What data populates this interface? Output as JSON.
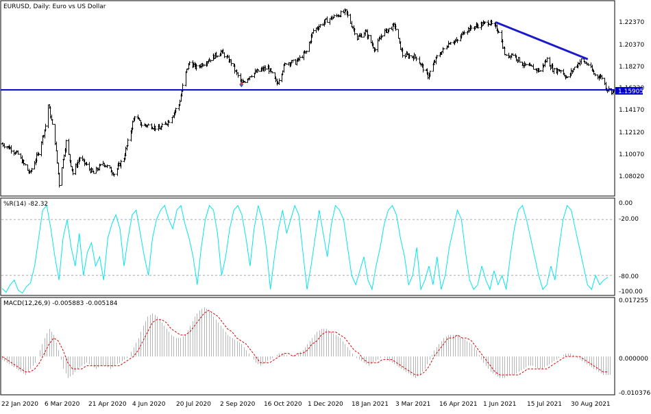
{
  "window": {
    "title": "EURUSD, Daily:  Euro vs US Dollar"
  },
  "colors": {
    "price_bars": "#000000",
    "horizontal_line": "#0000cc",
    "trendline": "#1a1acc",
    "williams_r": "#00e5ee",
    "macd_histogram": "#b4b4b4",
    "macd_signal": "#dd0000",
    "level_grid": "#aaaaaa",
    "current_price_label_bg": "#0000cc",
    "current_price_label_text": "#ffffff"
  },
  "chart_data": [
    {
      "type": "ohlc",
      "title": "EURUSD, Daily:  Euro vs US Dollar",
      "ylim": [
        1.06,
        1.242
      ],
      "y_ticks": [
        "1.22370",
        "1.20370",
        "1.18270",
        "1.16220",
        "1.14170",
        "1.12120",
        "1.10070",
        "1.08020"
      ],
      "horizontal_line": {
        "value": 1.159,
        "label": "1.15905"
      },
      "trendline": {
        "from": {
          "x": "8 Jun 2021",
          "y": 1.223
        },
        "to": {
          "x": "10 Sep 2021",
          "y": 1.188
        }
      },
      "marker": {
        "x": "22 Sep 2020",
        "y": 1.164
      },
      "anchors": [
        [
          "22 Jan 2020",
          1.108
        ],
        [
          "30 Jan 2020",
          1.104
        ],
        [
          "7 Feb 2020",
          1.098
        ],
        [
          "19 Feb 2020",
          1.08
        ],
        [
          "28 Feb 2020",
          1.1
        ],
        [
          "6 Mar 2020",
          1.125
        ],
        [
          "9 Mar 2020",
          1.145
        ],
        [
          "16 Mar 2020",
          1.11
        ],
        [
          "20 Mar 2020",
          1.07
        ],
        [
          "27 Mar 2020",
          1.11
        ],
        [
          "3 Apr 2020",
          1.08
        ],
        [
          "10 Apr 2020",
          1.095
        ],
        [
          "24 Apr 2020",
          1.08
        ],
        [
          "4 May 2020",
          1.09
        ],
        [
          "15 May 2020",
          1.08
        ],
        [
          "25 May 2020",
          1.095
        ],
        [
          "5 Jun 2020",
          1.135
        ],
        [
          "12 Jun 2020",
          1.126
        ],
        [
          "22 Jun 2020",
          1.125
        ],
        [
          "30 Jun 2020",
          1.122
        ],
        [
          "10 Jul 2020",
          1.13
        ],
        [
          "20 Jul 2020",
          1.145
        ],
        [
          "27 Jul 2020",
          1.175
        ],
        [
          "31 Jul 2020",
          1.185
        ],
        [
          "7 Aug 2020",
          1.18
        ],
        [
          "17 Aug 2020",
          1.186
        ],
        [
          "1 Sep 2020",
          1.195
        ],
        [
          "11 Sep 2020",
          1.185
        ],
        [
          "22 Sep 2020",
          1.165
        ],
        [
          "1 Oct 2020",
          1.173
        ],
        [
          "12 Oct 2020",
          1.178
        ],
        [
          "19 Oct 2020",
          1.18
        ],
        [
          "28 Oct 2020",
          1.165
        ],
        [
          "6 Nov 2020",
          1.185
        ],
        [
          "16 Nov 2020",
          1.185
        ],
        [
          "27 Nov 2020",
          1.195
        ],
        [
          "4 Dec 2020",
          1.215
        ],
        [
          "18 Dec 2020",
          1.225
        ],
        [
          "6 Jan 2021",
          1.233
        ],
        [
          "18 Jan 2021",
          1.208
        ],
        [
          "26 Jan 2021",
          1.214
        ],
        [
          "5 Feb 2021",
          1.197
        ],
        [
          "12 Feb 2021",
          1.212
        ],
        [
          "25 Feb 2021",
          1.22
        ],
        [
          "5 Mar 2021",
          1.192
        ],
        [
          "19 Mar 2021",
          1.19
        ],
        [
          "31 Mar 2021",
          1.172
        ],
        [
          "9 Apr 2021",
          1.19
        ],
        [
          "23 Apr 2021",
          1.205
        ],
        [
          "30 Apr 2021",
          1.205
        ],
        [
          "7 May 2021",
          1.215
        ],
        [
          "21 May 2021",
          1.22
        ],
        [
          "1 Jun 2021",
          1.223
        ],
        [
          "11 Jun 2021",
          1.215
        ],
        [
          "18 Jun 2021",
          1.19
        ],
        [
          "25 Jun 2021",
          1.193
        ],
        [
          "7 Jul 2021",
          1.182
        ],
        [
          "15 Jul 2021",
          1.18
        ],
        [
          "23 Jul 2021",
          1.177
        ],
        [
          "30 Jul 2021",
          1.188
        ],
        [
          "6 Aug 2021",
          1.177
        ],
        [
          "13 Aug 2021",
          1.178
        ],
        [
          "20 Aug 2021",
          1.17
        ],
        [
          "27 Aug 2021",
          1.18
        ],
        [
          "3 Sep 2021",
          1.187
        ],
        [
          "10 Sep 2021",
          1.183
        ],
        [
          "17 Sep 2021",
          1.173
        ],
        [
          "24 Sep 2021",
          1.171
        ],
        [
          "29 Sep 2021",
          1.16
        ],
        [
          "6 Oct 2021",
          1.157
        ]
      ]
    },
    {
      "type": "line",
      "title": "%R(14) -82.32",
      "ylim": [
        -100,
        0
      ],
      "y_ticks": [
        "0.00",
        "-20.00",
        "-80.00",
        "-100.00"
      ],
      "levels": [
        -20,
        -80
      ],
      "series": [
        {
          "values": [
            -94,
            -98,
            -90,
            -85,
            -96,
            -99,
            -92,
            -88,
            -70,
            -40,
            -10,
            -5,
            -30,
            -60,
            -85,
            -40,
            -20,
            -50,
            -70,
            -35,
            -80,
            -55,
            -45,
            -70,
            -60,
            -85,
            -40,
            -25,
            -15,
            -30,
            -70,
            -40,
            -15,
            -10,
            -35,
            -60,
            -80,
            -40,
            -20,
            -10,
            -5,
            -20,
            -30,
            -10,
            -5,
            -25,
            -40,
            -60,
            -90,
            -50,
            -20,
            -5,
            -10,
            -35,
            -80,
            -60,
            -30,
            -10,
            -5,
            -15,
            -40,
            -70,
            -30,
            -5,
            -20,
            -50,
            -95,
            -60,
            -30,
            -10,
            -35,
            -20,
            -5,
            -15,
            -55,
            -95,
            -70,
            -40,
            -10,
            -35,
            -60,
            -25,
            -5,
            -10,
            -20,
            -50,
            -80,
            -90,
            -75,
            -60,
            -85,
            -95,
            -70,
            -50,
            -25,
            -10,
            -5,
            -15,
            -40,
            -60,
            -90,
            -80,
            -50,
            -95,
            -85,
            -70,
            -90,
            -60,
            -95,
            -80,
            -50,
            -30,
            -10,
            -20,
            -55,
            -85,
            -95,
            -90,
            -70,
            -85,
            -95,
            -75,
            -90,
            -80,
            -95,
            -60,
            -30,
            -10,
            -5,
            -20,
            -40,
            -60,
            -80,
            -95,
            -90,
            -70,
            -85,
            -50,
            -20,
            -5,
            -10,
            -30,
            -50,
            -70,
            -90,
            -95,
            -80,
            -90,
            -85,
            -82
          ]
        }
      ]
    },
    {
      "type": "bar+line",
      "title": "MACD(12,26,9) -0.005883 -0.005184",
      "ylim": [
        -0.012,
        0.0185
      ],
      "y_ticks": [
        "0.017255",
        "0.000000",
        "-0.010376"
      ],
      "series": [
        {
          "name": "MACD",
          "values": [
            -0.001,
            -0.002,
            -0.003,
            -0.004,
            -0.005,
            -0.006,
            -0.004,
            -0.002,
            0.002,
            0.006,
            0.009,
            0.007,
            0.002,
            -0.004,
            -0.007,
            -0.006,
            -0.004,
            -0.003,
            -0.002,
            -0.003,
            -0.004,
            -0.003,
            -0.003,
            -0.004,
            -0.003,
            -0.002,
            -0.001,
            0.0,
            0.003,
            0.006,
            0.01,
            0.013,
            0.014,
            0.013,
            0.011,
            0.009,
            0.007,
            0.006,
            0.006,
            0.007,
            0.01,
            0.013,
            0.015,
            0.016,
            0.015,
            0.013,
            0.011,
            0.009,
            0.007,
            0.006,
            0.005,
            0.004,
            0.002,
            0.0,
            -0.002,
            -0.003,
            -0.002,
            -0.001,
            0.0,
            0.001,
            0.001,
            0.0,
            0.0,
            0.001,
            0.002,
            0.004,
            0.006,
            0.008,
            0.009,
            0.009,
            0.008,
            0.007,
            0.006,
            0.004,
            0.002,
            0.0,
            -0.001,
            -0.002,
            -0.003,
            -0.002,
            -0.001,
            0.0,
            -0.001,
            -0.002,
            -0.003,
            -0.004,
            -0.005,
            -0.006,
            -0.007,
            -0.006,
            -0.004,
            -0.001,
            0.002,
            0.004,
            0.006,
            0.007,
            0.007,
            0.007,
            0.006,
            0.005,
            0.004,
            0.002,
            -0.001,
            -0.003,
            -0.005,
            -0.006,
            -0.007,
            -0.007,
            -0.006,
            -0.006,
            -0.005,
            -0.004,
            -0.003,
            -0.003,
            -0.004,
            -0.004,
            -0.003,
            -0.002,
            -0.001,
            0.0,
            0.001,
            0.001,
            0.0,
            -0.001,
            -0.002,
            -0.003,
            -0.004,
            -0.005,
            -0.006,
            -0.006
          ]
        },
        {
          "name": "Signal",
          "values": [
            0.0,
            -0.001,
            -0.002,
            -0.003,
            -0.004,
            -0.005,
            -0.005,
            -0.004,
            -0.002,
            0.001,
            0.004,
            0.006,
            0.005,
            0.002,
            -0.002,
            -0.004,
            -0.004,
            -0.004,
            -0.003,
            -0.003,
            -0.003,
            -0.003,
            -0.003,
            -0.003,
            -0.003,
            -0.003,
            -0.002,
            -0.001,
            0.0,
            0.002,
            0.005,
            0.008,
            0.011,
            0.012,
            0.012,
            0.011,
            0.009,
            0.008,
            0.007,
            0.007,
            0.008,
            0.01,
            0.012,
            0.014,
            0.015,
            0.014,
            0.013,
            0.011,
            0.009,
            0.008,
            0.006,
            0.005,
            0.004,
            0.002,
            0.0,
            -0.002,
            -0.002,
            -0.002,
            -0.001,
            0.0,
            0.001,
            0.001,
            0.0,
            0.001,
            0.001,
            0.002,
            0.004,
            0.005,
            0.007,
            0.008,
            0.008,
            0.008,
            0.007,
            0.006,
            0.004,
            0.002,
            0.001,
            -0.001,
            -0.002,
            -0.002,
            -0.002,
            -0.001,
            -0.001,
            -0.001,
            -0.002,
            -0.003,
            -0.004,
            -0.005,
            -0.006,
            -0.006,
            -0.005,
            -0.003,
            0.0,
            0.002,
            0.004,
            0.006,
            0.006,
            0.007,
            0.006,
            0.006,
            0.005,
            0.003,
            0.001,
            -0.001,
            -0.003,
            -0.005,
            -0.006,
            -0.006,
            -0.006,
            -0.006,
            -0.006,
            -0.005,
            -0.004,
            -0.004,
            -0.004,
            -0.004,
            -0.004,
            -0.003,
            -0.002,
            -0.001,
            0.0,
            0.0,
            0.0,
            0.0,
            -0.001,
            -0.002,
            -0.003,
            -0.004,
            -0.005,
            -0.005
          ]
        }
      ]
    }
  ],
  "x_axis": {
    "tick_labels": [
      "22 Jan 2020",
      "6 Mar 2020",
      "21 Apr 2020",
      "4 Jun 2020",
      "20 Jul 2020",
      "2 Sep 2020",
      "16 Oct 2020",
      "1 Dec 2020",
      "18 Jan 2021",
      "3 Mar 2021",
      "16 Apr 2021",
      "1 Jun 2021",
      "15 Jul 2021",
      "30 Aug 2021"
    ]
  }
}
